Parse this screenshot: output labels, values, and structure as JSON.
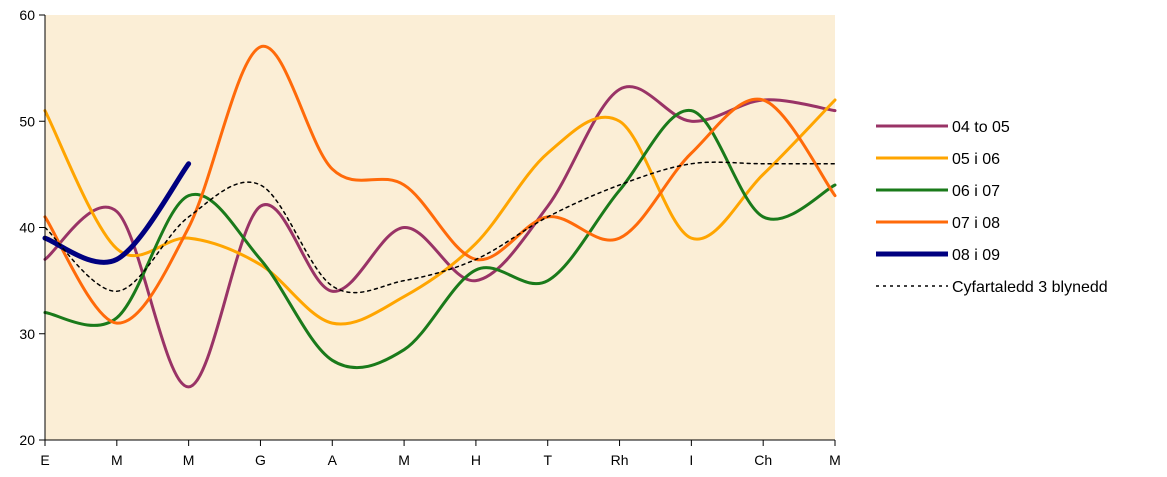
{
  "chart_data": {
    "type": "line",
    "title": "",
    "xlabel": "",
    "ylabel": "",
    "categories": [
      "E",
      "M",
      "M",
      "G",
      "A",
      "M",
      "H",
      "T",
      "Rh",
      "I",
      "Ch",
      "M"
    ],
    "ylim": [
      20,
      60
    ],
    "yticks": [
      20,
      30,
      40,
      50,
      60
    ],
    "grid": false,
    "legend_position": "right",
    "plot_background": "#fbeed6",
    "series": [
      {
        "name": "04 to 05",
        "color": "#993366",
        "dash": "solid",
        "weight": "normal",
        "values": [
          37,
          41.5,
          25,
          42,
          34,
          40,
          35,
          42,
          53,
          50,
          52,
          51
        ]
      },
      {
        "name": "05 i 06",
        "color": "#ffa500",
        "dash": "solid",
        "weight": "normal",
        "values": [
          51,
          38,
          39,
          36.5,
          31,
          33.5,
          38.5,
          47,
          50,
          39,
          45,
          52
        ]
      },
      {
        "name": "06 i 07",
        "color": "#1a7a1a",
        "dash": "solid",
        "weight": "normal",
        "values": [
          32,
          31.5,
          43,
          37,
          27.5,
          28.5,
          36,
          35,
          43.5,
          51,
          41,
          44
        ]
      },
      {
        "name": "07 i 08",
        "color": "#ff6a0a",
        "dash": "solid",
        "weight": "normal",
        "values": [
          41,
          31,
          40,
          57,
          45.5,
          44,
          37,
          41,
          39,
          47,
          52,
          43
        ]
      },
      {
        "name": "08 i 09",
        "color": "#000080",
        "dash": "solid",
        "weight": "bold",
        "values": [
          39,
          37,
          46,
          null,
          null,
          null,
          null,
          null,
          null,
          null,
          null,
          null
        ]
      },
      {
        "name": "Cyfartaledd 3 blynedd",
        "color": "#000000",
        "dash": "dotted",
        "weight": "thin",
        "values": [
          40,
          34,
          41,
          44,
          34.5,
          35,
          37,
          41,
          44,
          46,
          46,
          46
        ]
      }
    ]
  }
}
